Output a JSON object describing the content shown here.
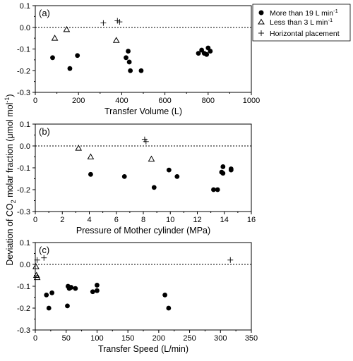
{
  "chart_data": [
    {
      "type": "scatter",
      "panel_label": "(a)",
      "xlabel": "Transfer Volume (L)",
      "xlim": [
        0,
        1000
      ],
      "ylim": [
        -0.3,
        0.1
      ],
      "xticks": [
        0,
        200,
        400,
        600,
        800,
        1000
      ],
      "yticks": [
        -0.3,
        -0.2,
        -0.1,
        0.0,
        0.1
      ],
      "reference_line": 0.0,
      "series": [
        {
          "name": "More than 19 L min-1",
          "marker": "filled-circle",
          "x": [
            80,
            160,
            195,
            420,
            430,
            435,
            440,
            490,
            755,
            770,
            782,
            793,
            800,
            810
          ],
          "y": [
            -0.14,
            -0.19,
            -0.13,
            -0.14,
            -0.11,
            -0.16,
            -0.2,
            -0.2,
            -0.12,
            -0.105,
            -0.12,
            -0.125,
            -0.095,
            -0.11
          ]
        },
        {
          "name": "Less than 3 L min-1",
          "marker": "open-triangle",
          "x": [
            90,
            145,
            375
          ],
          "y": [
            -0.05,
            -0.01,
            -0.06
          ]
        },
        {
          "name": "Horizontal placement",
          "marker": "plus",
          "x": [
            315,
            380,
            390
          ],
          "y": [
            0.02,
            0.03,
            0.025
          ]
        }
      ]
    },
    {
      "type": "scatter",
      "panel_label": "(b)",
      "xlabel": "Pressure of Mother cylinder (MPa)",
      "xlim": [
        0,
        16
      ],
      "ylim": [
        -0.3,
        0.1
      ],
      "xticks": [
        0,
        2,
        4,
        6,
        8,
        10,
        12,
        14,
        16
      ],
      "yticks": [
        -0.3,
        -0.2,
        -0.1,
        0.0,
        0.1
      ],
      "reference_line": 0.0,
      "series": [
        {
          "name": "More than 19 L min-1",
          "marker": "filled-circle",
          "x": [
            4.1,
            6.6,
            8.8,
            9.9,
            10.5,
            13.2,
            13.5,
            13.8,
            13.9,
            13.9,
            14.5,
            14.5
          ],
          "y": [
            -0.13,
            -0.14,
            -0.19,
            -0.11,
            -0.14,
            -0.2,
            -0.2,
            -0.12,
            -0.125,
            -0.095,
            -0.11,
            -0.105
          ]
        },
        {
          "name": "Less than 3 L min-1",
          "marker": "open-triangle",
          "x": [
            3.2,
            4.1,
            8.6
          ],
          "y": [
            -0.01,
            -0.05,
            -0.06
          ]
        },
        {
          "name": "Horizontal placement",
          "marker": "plus",
          "x": [
            8.1,
            8.2
          ],
          "y": [
            0.03,
            0.02
          ]
        }
      ]
    },
    {
      "type": "scatter",
      "panel_label": "(c)",
      "xlabel": "Transfer Speed (L/min)",
      "xlim": [
        0,
        350
      ],
      "ylim": [
        -0.3,
        0.1
      ],
      "xticks": [
        0,
        50,
        100,
        150,
        200,
        250,
        300,
        350
      ],
      "yticks": [
        -0.3,
        -0.2,
        -0.1,
        0.0,
        0.1
      ],
      "reference_line": 0.0,
      "series": [
        {
          "name": "More than 19 L min-1",
          "marker": "filled-circle",
          "x": [
            18,
            22,
            27,
            52,
            53,
            55,
            58,
            65,
            93,
            100,
            100,
            210,
            216
          ],
          "y": [
            -0.14,
            -0.2,
            -0.13,
            -0.19,
            -0.1,
            -0.11,
            -0.105,
            -0.11,
            -0.125,
            -0.12,
            -0.095,
            -0.14,
            -0.2
          ]
        },
        {
          "name": "Less than 3 L min-1",
          "marker": "open-triangle",
          "x": [
            1,
            2,
            3
          ],
          "y": [
            -0.01,
            -0.05,
            -0.06
          ]
        },
        {
          "name": "Horizontal placement",
          "marker": "plus",
          "x": [
            3,
            14,
            316
          ],
          "y": [
            0.02,
            0.03,
            0.02
          ]
        }
      ]
    }
  ],
  "shared_ylabel": {
    "prefix": "Deviation of CO",
    "subscript": "2",
    "middle": " molar fraction (μmol mol",
    "superscript": "-1",
    "suffix": ")"
  },
  "legend": {
    "placement": "top-right",
    "items": [
      {
        "marker": "filled-circle",
        "text": "More than 19 L min",
        "superscript": "-1"
      },
      {
        "marker": "open-triangle",
        "text": "Less than 3 L min",
        "superscript": "-1"
      },
      {
        "marker": "plus",
        "text": "Horizontal placement",
        "superscript": ""
      }
    ]
  }
}
